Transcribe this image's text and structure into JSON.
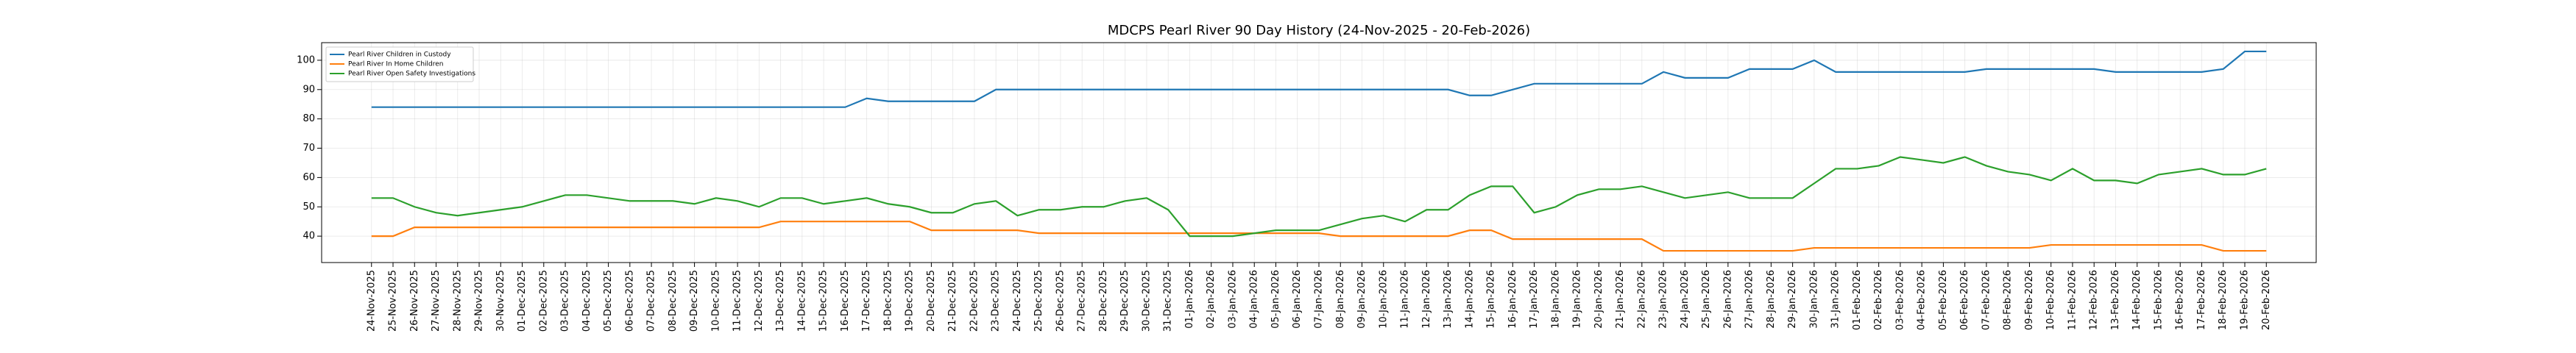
{
  "chart_data": {
    "type": "line",
    "title": "MDCPS Pearl River 90 Day History (24-Nov-2025 - 20-Feb-2026)",
    "categories": [
      "24-Nov-2025",
      "25-Nov-2025",
      "26-Nov-2025",
      "27-Nov-2025",
      "28-Nov-2025",
      "29-Nov-2025",
      "30-Nov-2025",
      "01-Dec-2025",
      "02-Dec-2025",
      "03-Dec-2025",
      "04-Dec-2025",
      "05-Dec-2025",
      "06-Dec-2025",
      "07-Dec-2025",
      "08-Dec-2025",
      "09-Dec-2025",
      "10-Dec-2025",
      "11-Dec-2025",
      "12-Dec-2025",
      "13-Dec-2025",
      "14-Dec-2025",
      "15-Dec-2025",
      "16-Dec-2025",
      "17-Dec-2025",
      "18-Dec-2025",
      "19-Dec-2025",
      "20-Dec-2025",
      "21-Dec-2025",
      "22-Dec-2025",
      "23-Dec-2025",
      "24-Dec-2025",
      "25-Dec-2025",
      "26-Dec-2025",
      "27-Dec-2025",
      "28-Dec-2025",
      "29-Dec-2025",
      "30-Dec-2025",
      "31-Dec-2025",
      "01-Jan-2026",
      "02-Jan-2026",
      "03-Jan-2026",
      "04-Jan-2026",
      "05-Jan-2026",
      "06-Jan-2026",
      "07-Jan-2026",
      "08-Jan-2026",
      "09-Jan-2026",
      "10-Jan-2026",
      "11-Jan-2026",
      "12-Jan-2026",
      "13-Jan-2026",
      "14-Jan-2026",
      "15-Jan-2026",
      "16-Jan-2026",
      "17-Jan-2026",
      "18-Jan-2026",
      "19-Jan-2026",
      "20-Jan-2026",
      "21-Jan-2026",
      "22-Jan-2026",
      "23-Jan-2026",
      "24-Jan-2026",
      "25-Jan-2026",
      "26-Jan-2026",
      "27-Jan-2026",
      "28-Jan-2026",
      "29-Jan-2026",
      "30-Jan-2026",
      "31-Jan-2026",
      "01-Feb-2026",
      "02-Feb-2026",
      "03-Feb-2026",
      "04-Feb-2026",
      "05-Feb-2026",
      "06-Feb-2026",
      "07-Feb-2026",
      "08-Feb-2026",
      "09-Feb-2026",
      "10-Feb-2026",
      "11-Feb-2026",
      "12-Feb-2026",
      "13-Feb-2026",
      "14-Feb-2026",
      "15-Feb-2026",
      "16-Feb-2026",
      "17-Feb-2026",
      "18-Feb-2026",
      "19-Feb-2026",
      "20-Feb-2026"
    ],
    "series": [
      {
        "name": "Pearl River Children in Custody",
        "color": "#1f77b4",
        "values": [
          84,
          84,
          84,
          84,
          84,
          84,
          84,
          84,
          84,
          84,
          84,
          84,
          84,
          84,
          84,
          84,
          84,
          84,
          84,
          84,
          84,
          84,
          84,
          87,
          86,
          86,
          86,
          86,
          86,
          90,
          90,
          90,
          90,
          90,
          90,
          90,
          90,
          90,
          90,
          90,
          90,
          90,
          90,
          90,
          90,
          90,
          90,
          90,
          90,
          90,
          90,
          88,
          88,
          90,
          92,
          92,
          92,
          92,
          92,
          92,
          96,
          94,
          94,
          94,
          97,
          97,
          97,
          100,
          96,
          96,
          96,
          96,
          96,
          96,
          96,
          97,
          97,
          97,
          97,
          97,
          97,
          96,
          96,
          96,
          96,
          96,
          97,
          103,
          103
        ]
      },
      {
        "name": "Pearl River In Home Children",
        "color": "#ff7f0e",
        "values": [
          40,
          40,
          43,
          43,
          43,
          43,
          43,
          43,
          43,
          43,
          43,
          43,
          43,
          43,
          43,
          43,
          43,
          43,
          43,
          45,
          45,
          45,
          45,
          45,
          45,
          45,
          42,
          42,
          42,
          42,
          42,
          41,
          41,
          41,
          41,
          41,
          41,
          41,
          41,
          41,
          41,
          41,
          41,
          41,
          41,
          40,
          40,
          40,
          40,
          40,
          40,
          42,
          42,
          39,
          39,
          39,
          39,
          39,
          39,
          39,
          35,
          35,
          35,
          35,
          35,
          35,
          35,
          36,
          36,
          36,
          36,
          36,
          36,
          36,
          36,
          36,
          36,
          36,
          37,
          37,
          37,
          37,
          37,
          37,
          37,
          37,
          35,
          35,
          35
        ]
      },
      {
        "name": "Pearl River Open Safety Investigations",
        "color": "#2ca02c",
        "values": [
          53,
          53,
          50,
          48,
          47,
          48,
          49,
          50,
          52,
          54,
          54,
          53,
          52,
          52,
          52,
          51,
          53,
          52,
          50,
          53,
          53,
          51,
          52,
          53,
          51,
          50,
          48,
          48,
          51,
          52,
          47,
          49,
          49,
          50,
          50,
          52,
          53,
          49,
          40,
          40,
          40,
          41,
          42,
          42,
          42,
          44,
          46,
          47,
          45,
          49,
          49,
          54,
          57,
          57,
          48,
          50,
          54,
          56,
          56,
          57,
          55,
          53,
          54,
          55,
          53,
          53,
          53,
          58,
          63,
          63,
          64,
          67,
          66,
          65,
          67,
          64,
          62,
          61,
          59,
          63,
          59,
          59,
          58,
          61,
          62,
          63,
          61,
          61,
          63
        ]
      }
    ],
    "ylim": [
      31,
      106
    ],
    "yticks": [
      40,
      50,
      60,
      70,
      80,
      90,
      100
    ],
    "grid": true,
    "legend": "upper left"
  }
}
